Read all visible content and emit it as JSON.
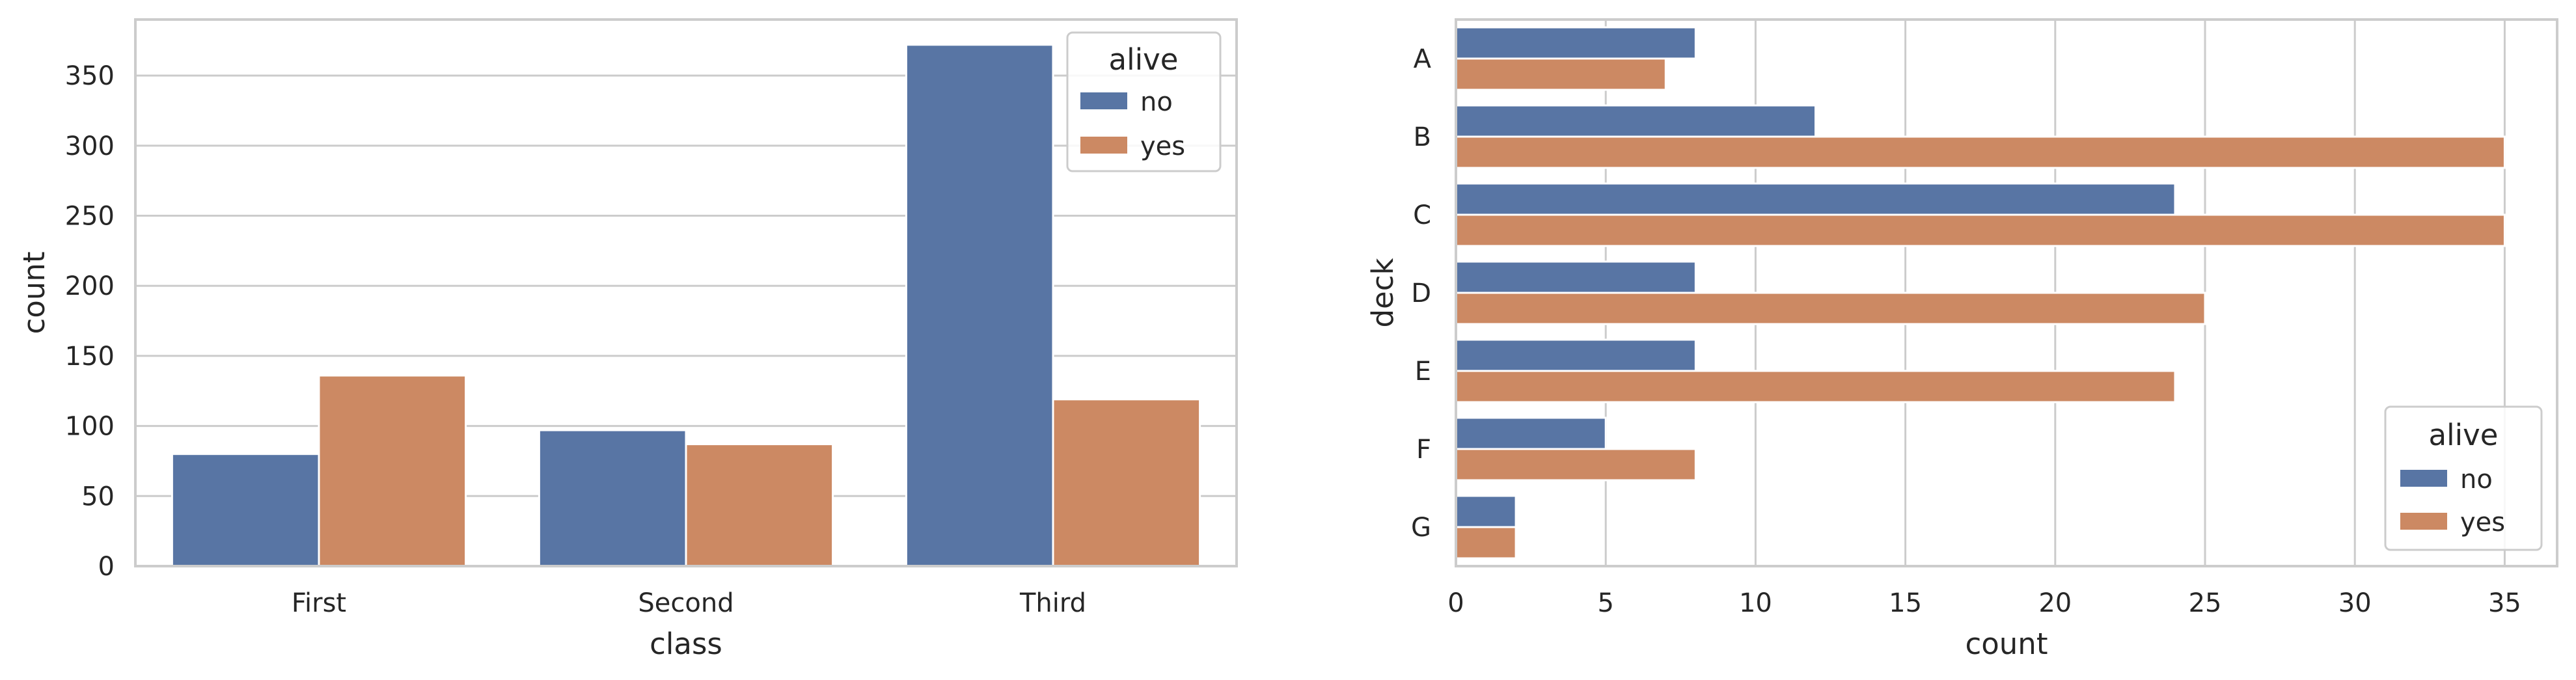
{
  "chart_data": [
    {
      "type": "bar",
      "orientation": "vertical",
      "xlabel": "class",
      "ylabel": "count",
      "categories": [
        "First",
        "Second",
        "Third"
      ],
      "series": [
        {
          "name": "no",
          "values": [
            80,
            97,
            372
          ]
        },
        {
          "name": "yes",
          "values": [
            136,
            87,
            119
          ]
        }
      ],
      "ylim": [
        0,
        390
      ],
      "yticks": [
        0,
        50,
        100,
        150,
        200,
        250,
        300,
        350
      ],
      "grid": true,
      "legend": {
        "title": "alive",
        "placement": "top-right"
      }
    },
    {
      "type": "bar",
      "orientation": "horizontal",
      "xlabel": "count",
      "ylabel": "deck",
      "categories": [
        "A",
        "B",
        "C",
        "D",
        "E",
        "F",
        "G"
      ],
      "series": [
        {
          "name": "no",
          "values": [
            8,
            12,
            24,
            8,
            8,
            5,
            2
          ]
        },
        {
          "name": "yes",
          "values": [
            7,
            35,
            35,
            25,
            24,
            8,
            2
          ]
        }
      ],
      "xlim": [
        0,
        36.75
      ],
      "xticks": [
        0,
        5,
        10,
        15,
        20,
        25,
        30,
        35
      ],
      "grid": true,
      "legend": {
        "title": "alive",
        "placement": "bottom-right"
      }
    }
  ],
  "colors": {
    "no": "#5875a4",
    "yes": "#cc8963"
  }
}
